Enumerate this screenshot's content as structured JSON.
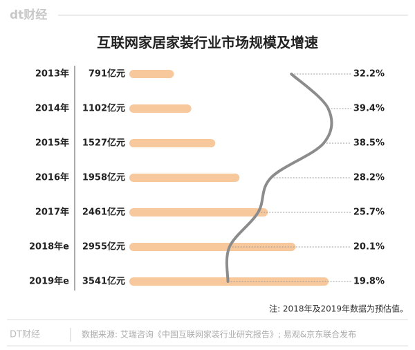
{
  "header": {
    "logo": "dt财经"
  },
  "chart_data": {
    "type": "bar",
    "title": "互联网家居家装行业市场规模及增速",
    "categories": [
      "2013年",
      "2014年",
      "2015年",
      "2016年",
      "2017年",
      "2018年e",
      "2019年e"
    ],
    "series": [
      {
        "type": "bar",
        "color": "#f6c89c",
        "values": [
          791,
          1102,
          1527,
          1958,
          2461,
          2955,
          3541
        ],
        "value_labels": [
          "791亿元",
          "1102亿元",
          "1527亿元",
          "1958亿元",
          "2461亿元",
          "2955亿元",
          "3541亿元"
        ]
      },
      {
        "type": "line",
        "color": "#8c8c8c",
        "values": [
          32.2,
          39.4,
          38.5,
          28.2,
          25.7,
          20.1,
          19.8
        ],
        "value_labels": [
          "32.2%",
          "39.4%",
          "38.5%",
          "28.2%",
          "25.7%",
          "20.1%",
          "19.8%"
        ]
      }
    ],
    "note": "注: 2018年及2019年数据为预估值。"
  },
  "footer": {
    "brand": "DT财经",
    "source": "数据来源: 艾瑞咨询《中国互联网家装行业研究报告》; 易观&京东联合发布"
  }
}
